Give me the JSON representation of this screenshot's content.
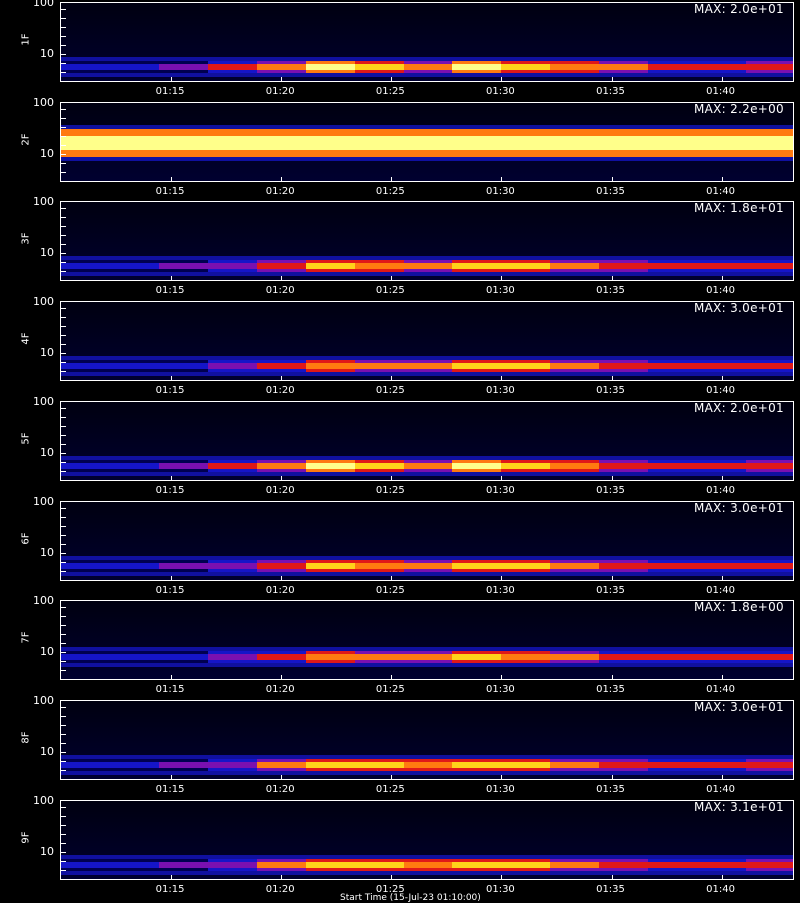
{
  "chart_data": [
    {
      "type": "heatmap",
      "panel": "1F",
      "max_label": "MAX: 2.0e+01",
      "ytick_labels": [
        "100",
        "10"
      ],
      "x_ticks": [
        "01:15",
        "01:20",
        "01:25",
        "01:30",
        "01:35",
        "01:40"
      ],
      "band_level": 0.8,
      "profile": [
        0.35,
        0.35,
        0.4,
        0.55,
        0.7,
        0.95,
        0.85,
        0.75,
        0.95,
        0.9,
        0.8,
        0.7,
        0.6,
        0.6,
        0.65
      ]
    },
    {
      "type": "heatmap",
      "panel": "2F",
      "max_label": "MAX: 2.2e+00",
      "ytick_labels": [
        "100",
        "10"
      ],
      "x_ticks": [
        "01:15",
        "01:20",
        "01:25",
        "01:30",
        "01:35",
        "01:40"
      ],
      "band_level": 0.5,
      "profile": [
        0.95,
        0.95,
        0.95,
        0.95,
        0.95,
        0.95,
        0.95,
        0.95,
        0.95,
        0.95,
        0.95,
        0.95,
        0.95,
        0.95,
        0.95
      ]
    },
    {
      "type": "heatmap",
      "panel": "3F",
      "max_label": "MAX: 1.8e+01",
      "ytick_labels": [
        "100",
        "10"
      ],
      "x_ticks": [
        "01:15",
        "01:20",
        "01:25",
        "01:30",
        "01:35",
        "01:40"
      ],
      "band_level": 0.8,
      "profile": [
        0.35,
        0.35,
        0.4,
        0.5,
        0.65,
        0.85,
        0.8,
        0.75,
        0.9,
        0.85,
        0.75,
        0.65,
        0.55,
        0.55,
        0.6
      ]
    },
    {
      "type": "heatmap",
      "panel": "4F",
      "max_label": "MAX: 3.0e+01",
      "ytick_labels": [
        "100",
        "10"
      ],
      "x_ticks": [
        "01:15",
        "01:20",
        "01:25",
        "01:30",
        "01:35",
        "01:40"
      ],
      "band_level": 0.8,
      "profile": [
        0.3,
        0.3,
        0.35,
        0.45,
        0.6,
        0.8,
        0.75,
        0.7,
        0.85,
        0.85,
        0.75,
        0.65,
        0.55,
        0.55,
        0.6
      ]
    },
    {
      "type": "heatmap",
      "panel": "5F",
      "max_label": "MAX: 2.0e+01",
      "ytick_labels": [
        "100",
        "10"
      ],
      "x_ticks": [
        "01:15",
        "01:20",
        "01:25",
        "01:30",
        "01:35",
        "01:40"
      ],
      "band_level": 0.8,
      "profile": [
        0.35,
        0.35,
        0.4,
        0.55,
        0.75,
        0.95,
        0.85,
        0.75,
        0.95,
        0.9,
        0.8,
        0.65,
        0.6,
        0.6,
        0.65
      ]
    },
    {
      "type": "heatmap",
      "panel": "6F",
      "max_label": "MAX: 3.0e+01",
      "ytick_labels": [
        "100",
        "10"
      ],
      "x_ticks": [
        "01:15",
        "01:20",
        "01:25",
        "01:30",
        "01:35",
        "01:40"
      ],
      "band_level": 0.8,
      "profile": [
        0.35,
        0.35,
        0.4,
        0.5,
        0.65,
        0.85,
        0.8,
        0.75,
        0.9,
        0.85,
        0.75,
        0.65,
        0.55,
        0.55,
        0.6
      ]
    },
    {
      "type": "heatmap",
      "panel": "7F",
      "max_label": "MAX: 1.8e+00",
      "ytick_labels": [
        "100",
        "10"
      ],
      "x_ticks": [
        "01:15",
        "01:20",
        "01:25",
        "01:30",
        "01:35",
        "01:40"
      ],
      "band_level": 0.7,
      "profile": [
        0.3,
        0.3,
        0.35,
        0.45,
        0.6,
        0.8,
        0.75,
        0.7,
        0.85,
        0.8,
        0.7,
        0.6,
        0.55,
        0.55,
        0.6
      ]
    },
    {
      "type": "heatmap",
      "panel": "8F",
      "max_label": "MAX: 3.0e+01",
      "ytick_labels": [
        "100",
        "10"
      ],
      "x_ticks": [
        "01:15",
        "01:20",
        "01:25",
        "01:30",
        "01:35",
        "01:40"
      ],
      "band_level": 0.8,
      "profile": [
        0.35,
        0.35,
        0.4,
        0.5,
        0.7,
        0.9,
        0.85,
        0.8,
        0.9,
        0.85,
        0.75,
        0.65,
        0.6,
        0.6,
        0.65
      ]
    },
    {
      "type": "heatmap",
      "panel": "9F",
      "max_label": "MAX: 3.1e+01",
      "ytick_labels": [
        "100",
        "10"
      ],
      "x_ticks": [
        "01:15",
        "01:20",
        "01:25",
        "01:30",
        "01:35",
        "01:40"
      ],
      "band_level": 0.8,
      "profile": [
        0.35,
        0.35,
        0.4,
        0.5,
        0.7,
        0.9,
        0.85,
        0.8,
        0.9,
        0.85,
        0.75,
        0.65,
        0.6,
        0.6,
        0.65
      ]
    }
  ],
  "footer": {
    "xlabel": "Start Time (15-Jul-23 01:10:00)"
  }
}
